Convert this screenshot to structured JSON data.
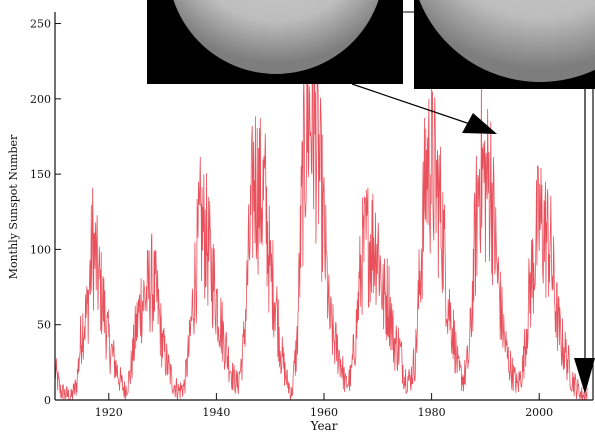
{
  "chart_data": {
    "type": "line",
    "title": "",
    "xlabel": "Year",
    "ylabel": "Monthly Sunspot Number",
    "xlim": [
      1910,
      2010
    ],
    "ylim": [
      0,
      255
    ],
    "x_ticks": [
      1920,
      1940,
      1960,
      1980,
      2000
    ],
    "x_tick_labels": [
      "1920",
      "1940",
      "1960",
      "1980",
      "2000"
    ],
    "y_ticks": [
      0,
      50,
      100,
      150,
      200,
      250
    ],
    "y_tick_labels": [
      "0",
      "50",
      "100",
      "150",
      "200",
      "250"
    ],
    "grid": false,
    "legend": "none",
    "series_color": "#e8505b",
    "series": [
      {
        "x": [
          1910,
          1911,
          1912,
          1913,
          1914,
          1915,
          1916,
          1917,
          1918,
          1919,
          1920,
          1921,
          1922,
          1923,
          1924,
          1925,
          1926,
          1927,
          1928,
          1929,
          1930,
          1931,
          1932,
          1933,
          1934,
          1935,
          1936,
          1937,
          1938,
          1939,
          1940,
          1941,
          1942,
          1943,
          1944,
          1945,
          1946,
          1947,
          1948,
          1949,
          1950,
          1951,
          1952,
          1953,
          1954,
          1955,
          1956,
          1957,
          1958,
          1959,
          1960,
          1961,
          1962,
          1963,
          1964,
          1965,
          1966,
          1967,
          1968,
          1969,
          1970,
          1971,
          1972,
          1973,
          1974,
          1975,
          1976,
          1977,
          1978,
          1979,
          1980,
          1981,
          1982,
          1983,
          1984,
          1985,
          1986,
          1987,
          1988,
          1989,
          1990,
          1991,
          1992,
          1993,
          1994,
          1995,
          1996,
          1997,
          1998,
          1999,
          2000,
          2001,
          2002,
          2003,
          2004,
          2005,
          2006,
          2007,
          2008,
          2009
        ],
        "values": [
          20,
          6,
          4,
          2,
          10,
          48,
          58,
          105,
          82,
          63,
          38,
          26,
          14,
          6,
          17,
          45,
          65,
          70,
          78,
          66,
          36,
          22,
          11,
          6,
          9,
          36,
          80,
          115,
          110,
          88,
          68,
          48,
          31,
          16,
          10,
          33,
          93,
          151,
          136,
          135,
          84,
          69,
          32,
          14,
          4,
          38,
          142,
          190,
          185,
          159,
          112,
          54,
          38,
          28,
          10,
          15,
          47,
          94,
          106,
          106,
          105,
          67,
          69,
          38,
          35,
          16,
          13,
          28,
          93,
          155,
          155,
          140,
          116,
          67,
          46,
          18,
          14,
          30,
          99,
          158,
          143,
          146,
          94,
          55,
          30,
          18,
          9,
          22,
          64,
          93,
          120,
          111,
          104,
          64,
          40,
          30,
          15,
          8,
          3,
          3
        ]
      }
    ],
    "annotation_arrow_color": "#000000"
  },
  "insets": {
    "image_bg": "#000000",
    "disk_edge_color": "#7d7d7d",
    "disk_center_color": "#d4d4d4"
  }
}
